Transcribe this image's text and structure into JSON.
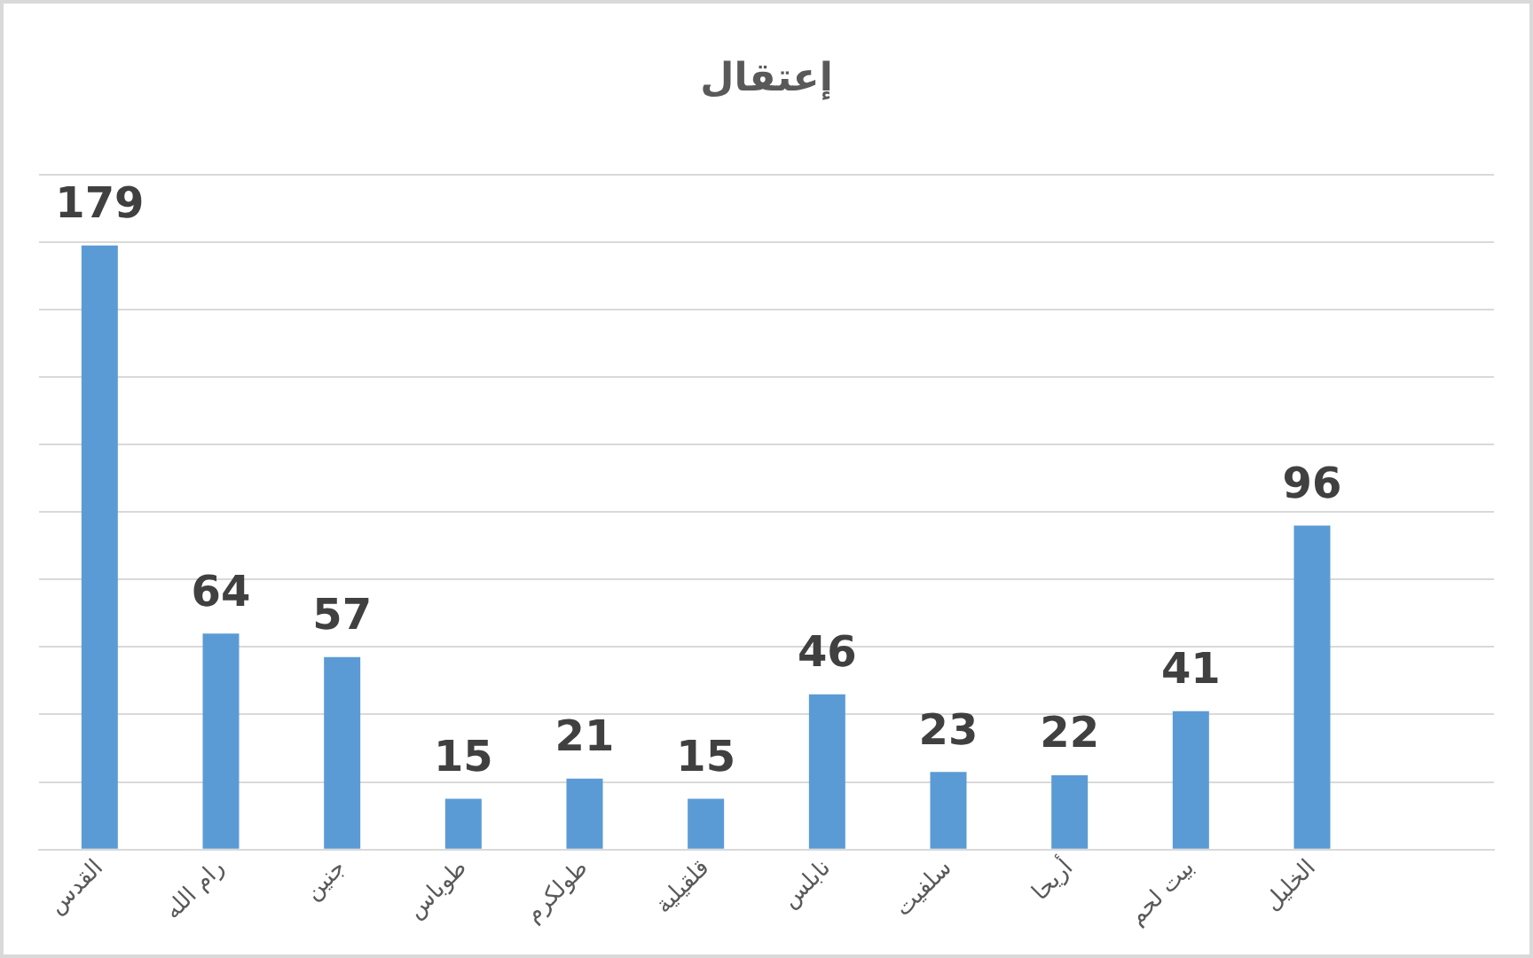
{
  "chart_data": {
    "type": "bar",
    "title": "إعتقال",
    "categories": [
      "القدس",
      "رام الله",
      "جنين",
      "طوباس",
      "طولكرم",
      "قلقيلية",
      "نابلس",
      "سلفيت",
      "أريحا",
      "بيت لحم",
      "الخليل",
      null
    ],
    "values": [
      179,
      64,
      57,
      15,
      21,
      15,
      46,
      23,
      22,
      41,
      96,
      null
    ],
    "color": "#5b9bd5",
    "ylim": [
      0,
      200
    ],
    "yticks": [
      0,
      20,
      40,
      60,
      80,
      100,
      120,
      140,
      160,
      180,
      200
    ],
    "grid": "y",
    "tick_labels": "x",
    "data_labels": true,
    "legend": false
  }
}
